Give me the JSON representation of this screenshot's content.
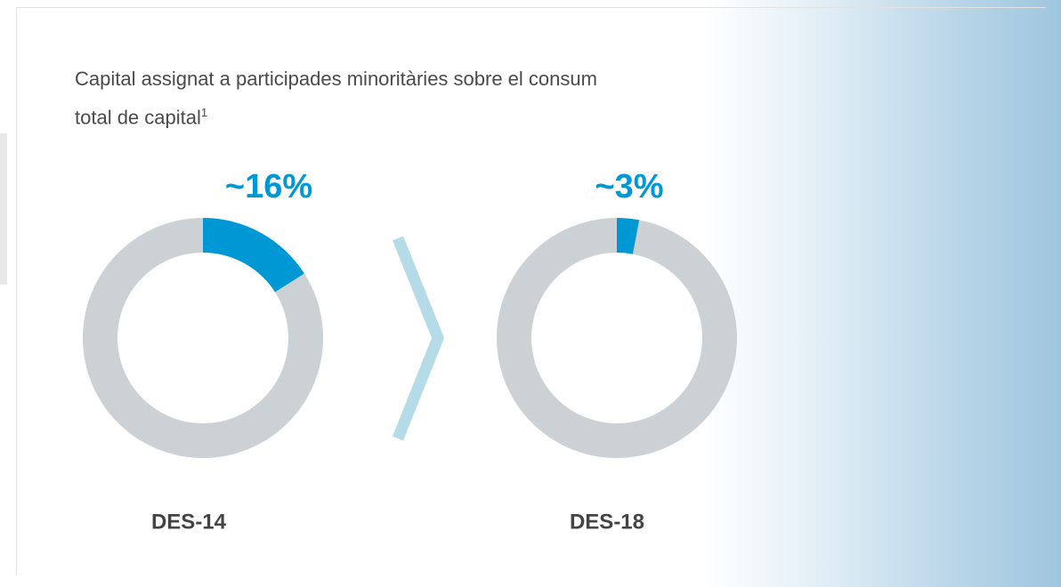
{
  "title": "Capital assignat a participades minoritàries sobre el consum total de capital",
  "title_footnote": "1",
  "chart_data": [
    {
      "type": "donut",
      "title": "DES-14",
      "categories": [
        null,
        null
      ],
      "values": [
        16,
        84
      ],
      "value_labels": [
        "~16%",
        null
      ],
      "colors": [
        "#0098d4",
        "#ccd1d5"
      ]
    },
    {
      "type": "donut",
      "title": "DES-18",
      "categories": [
        null,
        null
      ],
      "values": [
        3,
        97
      ],
      "value_labels": [
        "~3%",
        null
      ],
      "colors": [
        "#0098d4",
        "#ccd1d5"
      ]
    }
  ]
}
